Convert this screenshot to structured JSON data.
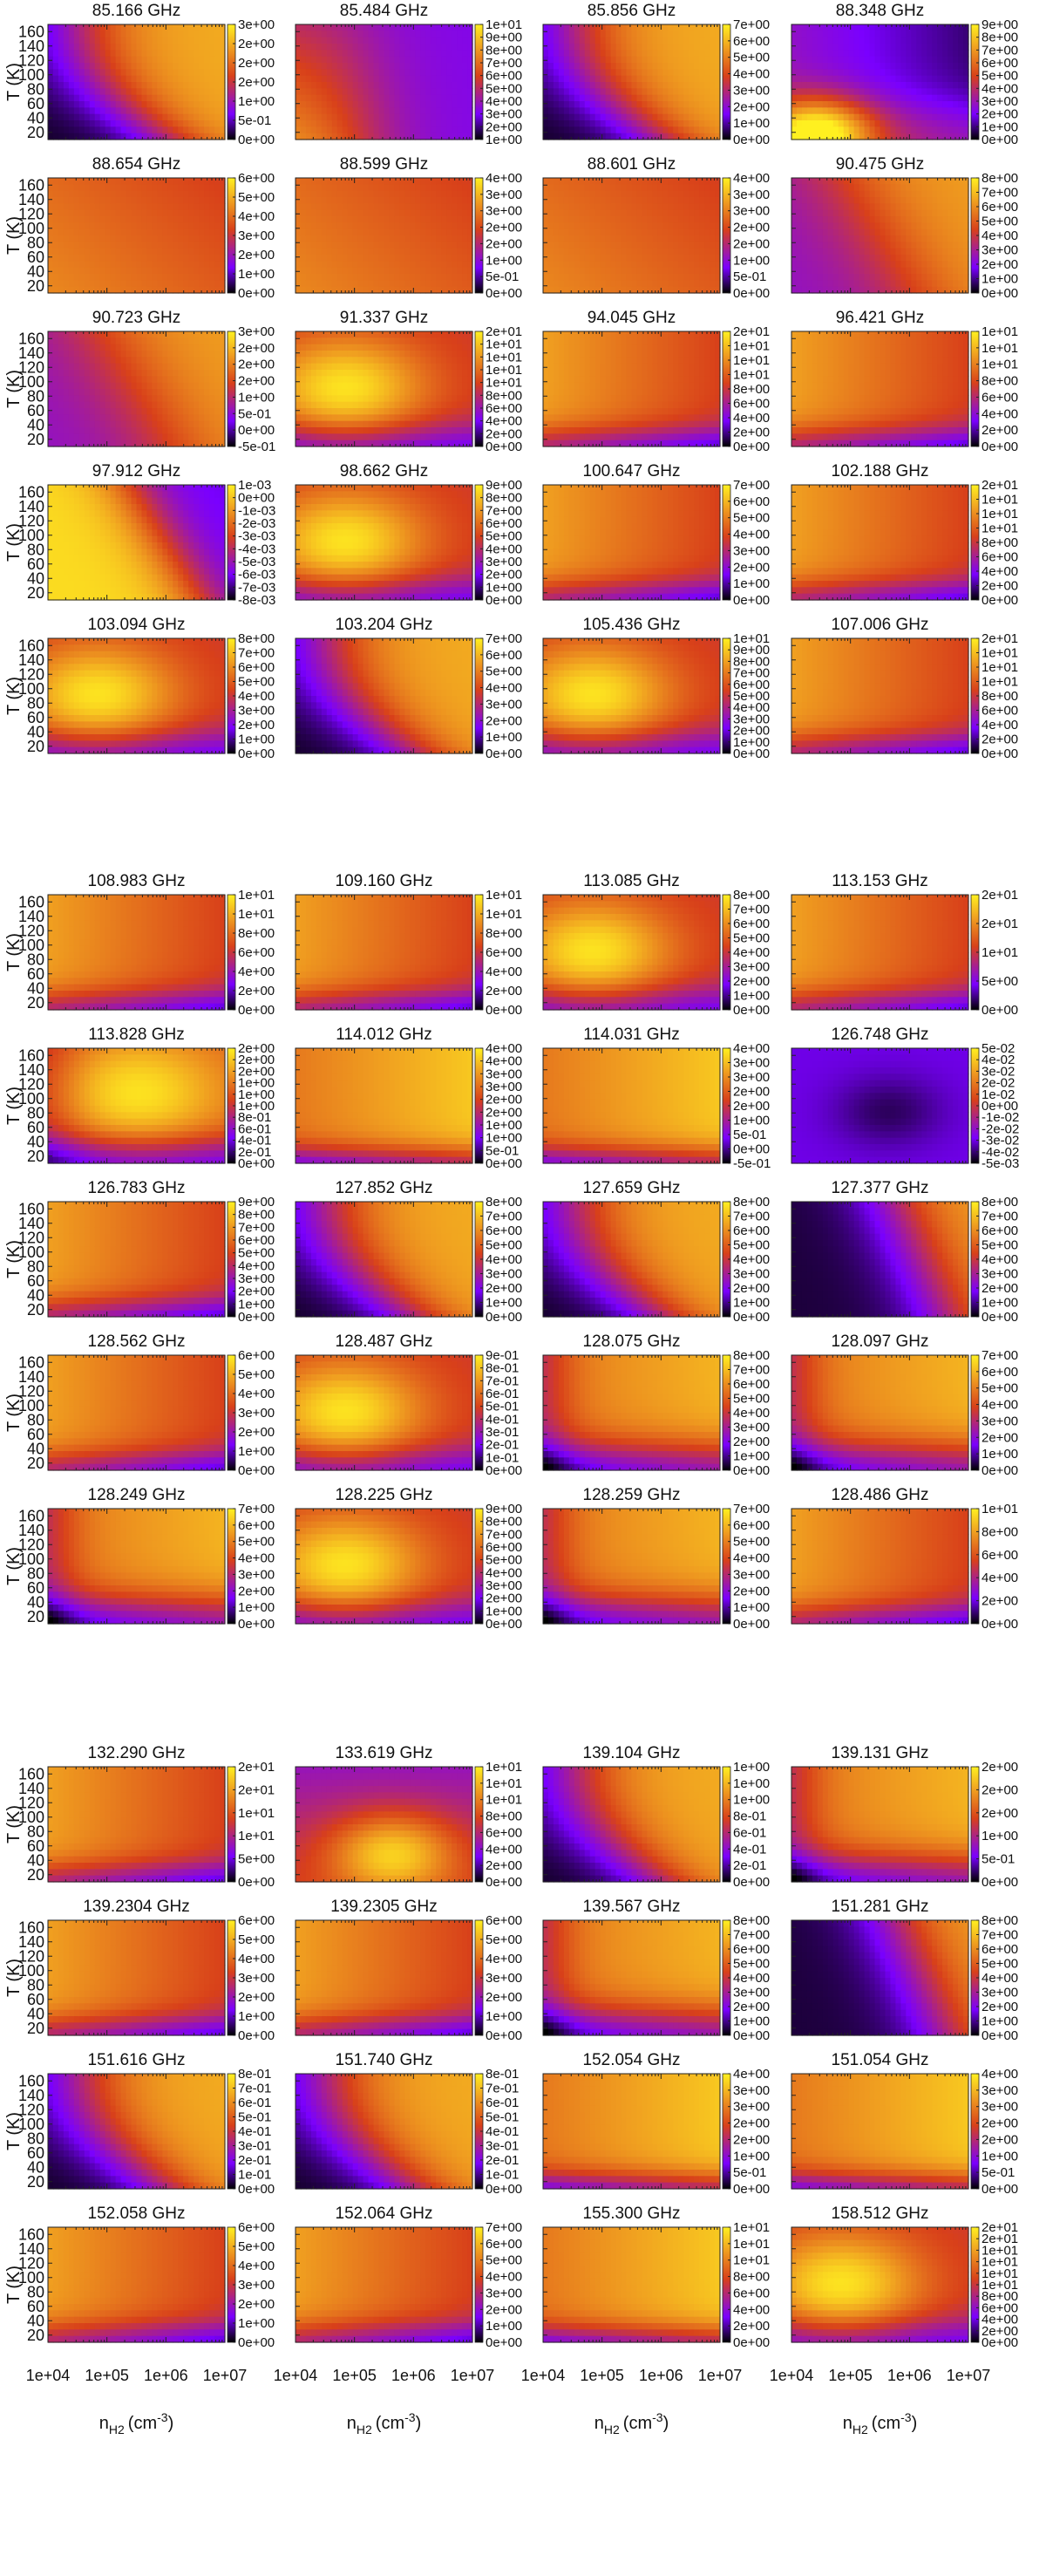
{
  "chart_data": {
    "type": "heatmap",
    "layout": {
      "groups": 3,
      "columns": 4,
      "rows_per_group": [
        5,
        5,
        4
      ]
    },
    "x_axis": {
      "label_main": "n",
      "label_sub": "H2",
      "label_unit": "(cm",
      "label_exp": "-3",
      "label_close": ")",
      "ticks": [
        "1e+04",
        "1e+05",
        "1e+06",
        "1e+07"
      ],
      "range": [
        10000,
        10000000
      ],
      "scale": "log"
    },
    "y_axis": {
      "label": "T (K)",
      "ticks": [
        "160",
        "140",
        "120",
        "100",
        "80",
        "60",
        "40",
        "20"
      ],
      "range": [
        10,
        170
      ]
    },
    "colormap": [
      "#000000",
      "#7a00ff",
      "#d8401a",
      "#f0a020",
      "#fff020"
    ],
    "panels": [
      {
        "title": "85.166 GHz",
        "cb": [
          "3e+00",
          "2e+00",
          "2e+00",
          "2e+00",
          "1e+00",
          "5e-01",
          "0e+00"
        ],
        "pattern": "A"
      },
      {
        "title": "85.484 GHz",
        "cb": [
          "1e+01",
          "9e+00",
          "8e+00",
          "7e+00",
          "6e+00",
          "5e+00",
          "4e+00",
          "3e+00",
          "2e+00",
          "1e+00"
        ],
        "pattern": "B"
      },
      {
        "title": "85.856 GHz",
        "cb": [
          "7e+00",
          "6e+00",
          "5e+00",
          "4e+00",
          "3e+00",
          "2e+00",
          "1e+00",
          "0e+00"
        ],
        "pattern": "A"
      },
      {
        "title": "88.348 GHz",
        "cb": [
          "9e+00",
          "8e+00",
          "7e+00",
          "6e+00",
          "5e+00",
          "4e+00",
          "3e+00",
          "2e+00",
          "1e+00",
          "0e+00"
        ],
        "pattern": "C"
      },
      {
        "title": "88.654 GHz",
        "cb": [
          "6e+00",
          "5e+00",
          "4e+00",
          "3e+00",
          "2e+00",
          "1e+00",
          "0e+00"
        ],
        "pattern": "D"
      },
      {
        "title": "88.599 GHz",
        "cb": [
          "4e+00",
          "3e+00",
          "3e+00",
          "2e+00",
          "2e+00",
          "1e+00",
          "5e-01",
          "0e+00"
        ],
        "pattern": "D"
      },
      {
        "title": "88.601 GHz",
        "cb": [
          "4e+00",
          "3e+00",
          "3e+00",
          "2e+00",
          "2e+00",
          "1e+00",
          "5e-01",
          "0e+00"
        ],
        "pattern": "D"
      },
      {
        "title": "90.475 GHz",
        "cb": [
          "8e+00",
          "7e+00",
          "6e+00",
          "5e+00",
          "4e+00",
          "3e+00",
          "2e+00",
          "1e+00",
          "0e+00"
        ],
        "pattern": "E"
      },
      {
        "title": "90.723 GHz",
        "cb": [
          "3e+00",
          "2e+00",
          "2e+00",
          "2e+00",
          "1e+00",
          "5e-01",
          "0e+00",
          "-5e-01"
        ],
        "pattern": "E"
      },
      {
        "title": "91.337 GHz",
        "cb": [
          "2e+01",
          "1e+01",
          "1e+01",
          "1e+01",
          "1e+01",
          "8e+00",
          "6e+00",
          "4e+00",
          "2e+00",
          "0e+00"
        ],
        "pattern": "F"
      },
      {
        "title": "94.045 GHz",
        "cb": [
          "2e+01",
          "1e+01",
          "1e+01",
          "1e+01",
          "8e+00",
          "6e+00",
          "4e+00",
          "2e+00",
          "0e+00"
        ],
        "pattern": "G"
      },
      {
        "title": "96.421 GHz",
        "cb": [
          "1e+01",
          "1e+01",
          "1e+01",
          "8e+00",
          "6e+00",
          "4e+00",
          "2e+00",
          "0e+00"
        ],
        "pattern": "G"
      },
      {
        "title": "97.912 GHz",
        "cb": [
          "1e-03",
          "0e+00",
          "-1e-03",
          "-2e-03",
          "-3e-03",
          "-4e-03",
          "-5e-03",
          "-6e-03",
          "-7e-03",
          "-8e-03"
        ],
        "pattern": "H"
      },
      {
        "title": "98.662 GHz",
        "cb": [
          "9e+00",
          "8e+00",
          "7e+00",
          "6e+00",
          "5e+00",
          "4e+00",
          "3e+00",
          "2e+00",
          "1e+00",
          "0e+00"
        ],
        "pattern": "F"
      },
      {
        "title": "100.647 GHz",
        "cb": [
          "7e+00",
          "6e+00",
          "5e+00",
          "4e+00",
          "3e+00",
          "2e+00",
          "1e+00",
          "0e+00"
        ],
        "pattern": "G"
      },
      {
        "title": "102.188 GHz",
        "cb": [
          "2e+01",
          "1e+01",
          "1e+01",
          "1e+01",
          "8e+00",
          "6e+00",
          "4e+00",
          "2e+00",
          "0e+00"
        ],
        "pattern": "G"
      },
      {
        "title": "103.094 GHz",
        "cb": [
          "8e+00",
          "7e+00",
          "6e+00",
          "5e+00",
          "4e+00",
          "3e+00",
          "2e+00",
          "1e+00",
          "0e+00"
        ],
        "pattern": "F"
      },
      {
        "title": "103.204 GHz",
        "cb": [
          "7e+00",
          "6e+00",
          "5e+00",
          "4e+00",
          "3e+00",
          "2e+00",
          "1e+00",
          "0e+00"
        ],
        "pattern": "A"
      },
      {
        "title": "105.436 GHz",
        "cb": [
          "1e+01",
          "9e+00",
          "8e+00",
          "7e+00",
          "6e+00",
          "5e+00",
          "4e+00",
          "3e+00",
          "2e+00",
          "1e+00",
          "0e+00"
        ],
        "pattern": "F"
      },
      {
        "title": "107.006 GHz",
        "cb": [
          "2e+01",
          "1e+01",
          "1e+01",
          "1e+01",
          "8e+00",
          "6e+00",
          "4e+00",
          "2e+00",
          "0e+00"
        ],
        "pattern": "G"
      },
      {
        "title": "108.983 GHz",
        "cb": [
          "1e+01",
          "1e+01",
          "8e+00",
          "6e+00",
          "4e+00",
          "2e+00",
          "0e+00"
        ],
        "pattern": "G"
      },
      {
        "title": "109.160 GHz",
        "cb": [
          "1e+01",
          "1e+01",
          "8e+00",
          "6e+00",
          "4e+00",
          "2e+00",
          "0e+00"
        ],
        "pattern": "G"
      },
      {
        "title": "113.085 GHz",
        "cb": [
          "8e+00",
          "7e+00",
          "6e+00",
          "5e+00",
          "4e+00",
          "3e+00",
          "2e+00",
          "1e+00",
          "0e+00"
        ],
        "pattern": "F"
      },
      {
        "title": "113.153 GHz",
        "cb": [
          "2e+01",
          "2e+01",
          "1e+01",
          "5e+00",
          "0e+00"
        ],
        "pattern": "G"
      },
      {
        "title": "113.828 GHz",
        "cb": [
          "2e+00",
          "2e+00",
          "2e+00",
          "1e+00",
          "1e+00",
          "1e+00",
          "8e-01",
          "6e-01",
          "4e-01",
          "2e-01",
          "0e+00"
        ],
        "pattern": "I"
      },
      {
        "title": "114.012 GHz",
        "cb": [
          "4e+00",
          "4e+00",
          "3e+00",
          "3e+00",
          "2e+00",
          "2e+00",
          "1e+00",
          "1e+00",
          "5e-01",
          "0e+00"
        ],
        "pattern": "J"
      },
      {
        "title": "114.031 GHz",
        "cb": [
          "4e+00",
          "3e+00",
          "3e+00",
          "2e+00",
          "2e+00",
          "1e+00",
          "5e-01",
          "0e+00",
          "-5e-01"
        ],
        "pattern": "J"
      },
      {
        "title": "126.748 GHz",
        "cb": [
          "5e-02",
          "4e-02",
          "3e-02",
          "2e-02",
          "1e-02",
          "0e+00",
          "-1e-02",
          "-2e-02",
          "-3e-02",
          "-4e-02",
          "-5e-03"
        ],
        "pattern": "K"
      },
      {
        "title": "126.783 GHz",
        "cb": [
          "9e+00",
          "8e+00",
          "7e+00",
          "6e+00",
          "5e+00",
          "4e+00",
          "3e+00",
          "2e+00",
          "1e+00",
          "0e+00"
        ],
        "pattern": "G"
      },
      {
        "title": "127.852 GHz",
        "cb": [
          "8e+00",
          "7e+00",
          "6e+00",
          "5e+00",
          "4e+00",
          "3e+00",
          "2e+00",
          "1e+00",
          "0e+00"
        ],
        "pattern": "A"
      },
      {
        "title": "127.659 GHz",
        "cb": [
          "8e+00",
          "7e+00",
          "6e+00",
          "5e+00",
          "4e+00",
          "3e+00",
          "2e+00",
          "1e+00",
          "0e+00"
        ],
        "pattern": "A"
      },
      {
        "title": "127.377 GHz",
        "cb": [
          "8e+00",
          "7e+00",
          "6e+00",
          "5e+00",
          "4e+00",
          "3e+00",
          "2e+00",
          "1e+00",
          "0e+00"
        ],
        "pattern": "L"
      },
      {
        "title": "128.562 GHz",
        "cb": [
          "6e+00",
          "5e+00",
          "4e+00",
          "3e+00",
          "2e+00",
          "1e+00",
          "0e+00"
        ],
        "pattern": "G"
      },
      {
        "title": "128.487 GHz",
        "cb": [
          "9e-01",
          "8e-01",
          "7e-01",
          "6e-01",
          "5e-01",
          "4e-01",
          "3e-01",
          "2e-01",
          "1e-01",
          "0e+00"
        ],
        "pattern": "F"
      },
      {
        "title": "128.075 GHz",
        "cb": [
          "8e+00",
          "7e+00",
          "6e+00",
          "5e+00",
          "4e+00",
          "3e+00",
          "2e+00",
          "1e+00",
          "0e+00"
        ],
        "pattern": "M"
      },
      {
        "title": "128.097 GHz",
        "cb": [
          "7e+00",
          "6e+00",
          "5e+00",
          "4e+00",
          "3e+00",
          "2e+00",
          "1e+00",
          "0e+00"
        ],
        "pattern": "M"
      },
      {
        "title": "128.249 GHz",
        "cb": [
          "7e+00",
          "6e+00",
          "5e+00",
          "4e+00",
          "3e+00",
          "2e+00",
          "1e+00",
          "0e+00"
        ],
        "pattern": "M"
      },
      {
        "title": "128.225 GHz",
        "cb": [
          "9e+00",
          "8e+00",
          "7e+00",
          "6e+00",
          "5e+00",
          "4e+00",
          "3e+00",
          "2e+00",
          "1e+00",
          "0e+00"
        ],
        "pattern": "F"
      },
      {
        "title": "128.259 GHz",
        "cb": [
          "7e+00",
          "6e+00",
          "5e+00",
          "4e+00",
          "3e+00",
          "2e+00",
          "1e+00",
          "0e+00"
        ],
        "pattern": "M"
      },
      {
        "title": "128.486 GHz",
        "cb": [
          "1e+01",
          "8e+00",
          "6e+00",
          "4e+00",
          "2e+00",
          "0e+00"
        ],
        "pattern": "G"
      },
      {
        "title": "132.290 GHz",
        "cb": [
          "2e+01",
          "2e+01",
          "1e+01",
          "1e+01",
          "5e+00",
          "0e+00"
        ],
        "pattern": "G"
      },
      {
        "title": "133.619 GHz",
        "cb": [
          "1e+01",
          "1e+01",
          "1e+01",
          "8e+00",
          "6e+00",
          "4e+00",
          "2e+00",
          "0e+00"
        ],
        "pattern": "N"
      },
      {
        "title": "139.104 GHz",
        "cb": [
          "1e+00",
          "1e+00",
          "1e+00",
          "8e-01",
          "6e-01",
          "4e-01",
          "2e-01",
          "0e+00"
        ],
        "pattern": "A"
      },
      {
        "title": "139.131 GHz",
        "cb": [
          "2e+00",
          "2e+00",
          "2e+00",
          "1e+00",
          "5e-01",
          "0e+00"
        ],
        "pattern": "M"
      },
      {
        "title": "139.2304 GHz",
        "cb": [
          "6e+00",
          "5e+00",
          "4e+00",
          "3e+00",
          "2e+00",
          "1e+00",
          "0e+00"
        ],
        "pattern": "G"
      },
      {
        "title": "139.2305 GHz",
        "cb": [
          "6e+00",
          "5e+00",
          "4e+00",
          "3e+00",
          "2e+00",
          "1e+00",
          "0e+00"
        ],
        "pattern": "G"
      },
      {
        "title": "139.567 GHz",
        "cb": [
          "8e+00",
          "7e+00",
          "6e+00",
          "5e+00",
          "4e+00",
          "3e+00",
          "2e+00",
          "1e+00",
          "0e+00"
        ],
        "pattern": "M"
      },
      {
        "title": "151.281 GHz",
        "cb": [
          "8e+00",
          "7e+00",
          "6e+00",
          "5e+00",
          "4e+00",
          "3e+00",
          "2e+00",
          "1e+00",
          "0e+00"
        ],
        "pattern": "L"
      },
      {
        "title": "151.616 GHz",
        "cb": [
          "8e-01",
          "7e-01",
          "6e-01",
          "5e-01",
          "4e-01",
          "3e-01",
          "2e-01",
          "1e-01",
          "0e+00"
        ],
        "pattern": "A"
      },
      {
        "title": "151.740 GHz",
        "cb": [
          "8e-01",
          "7e-01",
          "6e-01",
          "5e-01",
          "4e-01",
          "3e-01",
          "2e-01",
          "1e-01",
          "0e+00"
        ],
        "pattern": "A"
      },
      {
        "title": "152.054 GHz",
        "cb": [
          "4e+00",
          "3e+00",
          "3e+00",
          "2e+00",
          "2e+00",
          "1e+00",
          "5e-01",
          "0e+00"
        ],
        "pattern": "J"
      },
      {
        "title": "151.054 GHz",
        "cb": [
          "4e+00",
          "3e+00",
          "3e+00",
          "2e+00",
          "2e+00",
          "1e+00",
          "5e-01",
          "0e+00"
        ],
        "pattern": "J"
      },
      {
        "title": "152.058 GHz",
        "cb": [
          "6e+00",
          "5e+00",
          "4e+00",
          "3e+00",
          "2e+00",
          "1e+00",
          "0e+00"
        ],
        "pattern": "G"
      },
      {
        "title": "152.064 GHz",
        "cb": [
          "7e+00",
          "6e+00",
          "5e+00",
          "4e+00",
          "3e+00",
          "2e+00",
          "1e+00",
          "0e+00"
        ],
        "pattern": "G"
      },
      {
        "title": "155.300 GHz",
        "cb": [
          "1e+01",
          "1e+01",
          "1e+01",
          "8e+00",
          "6e+00",
          "4e+00",
          "2e+00",
          "0e+00"
        ],
        "pattern": "J"
      },
      {
        "title": "158.512 GHz",
        "cb": [
          "2e+01",
          "2e+01",
          "1e+01",
          "1e+01",
          "1e+01",
          "1e+01",
          "8e+00",
          "6e+00",
          "4e+00",
          "2e+00",
          "0e+00"
        ],
        "pattern": "F"
      }
    ]
  }
}
